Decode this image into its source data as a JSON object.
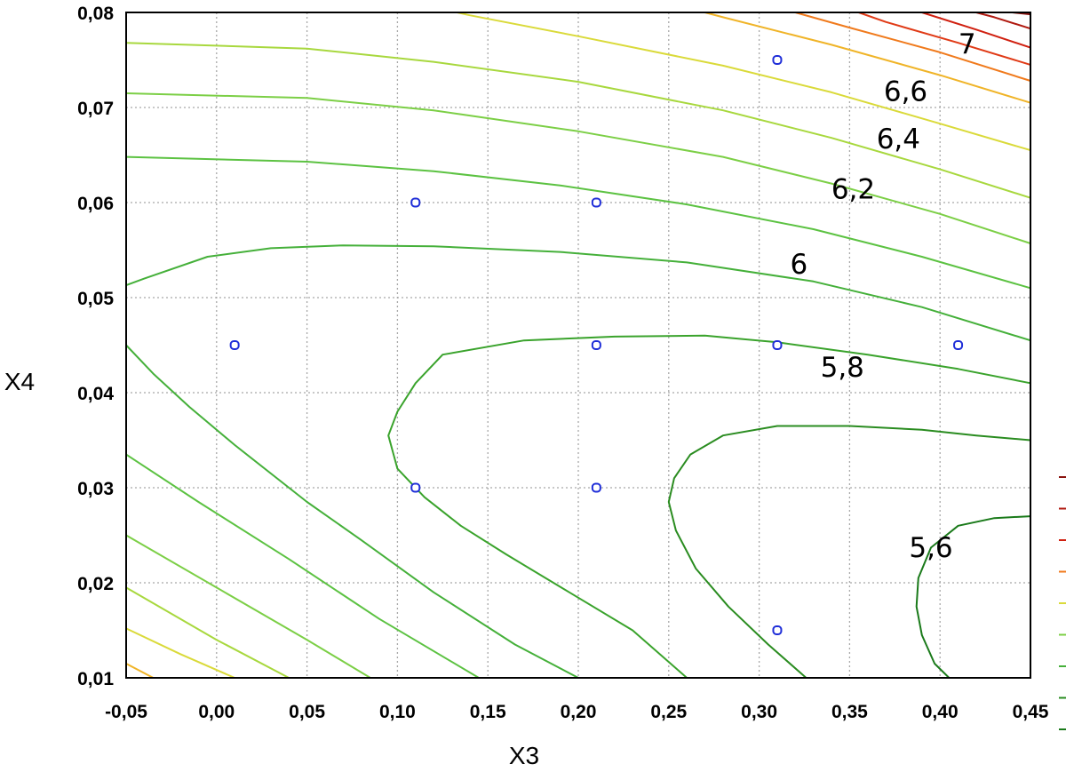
{
  "chart_data": {
    "type": "contour",
    "xlabel": "X3",
    "ylabel": "X4",
    "xlim": [
      -0.05,
      0.45
    ],
    "ylim": [
      0.01,
      0.08
    ],
    "x_ticks": [
      "-0,05",
      "0,00",
      "0,05",
      "0,10",
      "0,15",
      "0,20",
      "0,25",
      "0,30",
      "0,35",
      "0,40",
      "0,45"
    ],
    "y_ticks": [
      "0,01",
      "0,02",
      "0,03",
      "0,04",
      "0,05",
      "0,06",
      "0,07",
      "0,08"
    ],
    "grid": true,
    "legend_position": "right",
    "design_points": [
      {
        "x": 0.01,
        "y": 0.045
      },
      {
        "x": 0.11,
        "y": 0.06
      },
      {
        "x": 0.11,
        "y": 0.03
      },
      {
        "x": 0.21,
        "y": 0.06
      },
      {
        "x": 0.21,
        "y": 0.045
      },
      {
        "x": 0.21,
        "y": 0.03
      },
      {
        "x": 0.31,
        "y": 0.075
      },
      {
        "x": 0.31,
        "y": 0.045
      },
      {
        "x": 0.31,
        "y": 0.015
      },
      {
        "x": 0.41,
        "y": 0.045
      }
    ],
    "contour_labels": [
      {
        "text": "7",
        "x": 0.415,
        "y": 0.0765
      },
      {
        "text": "6,6",
        "x": 0.381,
        "y": 0.0715
      },
      {
        "text": "6,4",
        "x": 0.377,
        "y": 0.0665
      },
      {
        "text": "6,2",
        "x": 0.352,
        "y": 0.0612
      },
      {
        "text": "6",
        "x": 0.322,
        "y": 0.0533
      },
      {
        "text": "5,8",
        "x": 0.346,
        "y": 0.0425
      },
      {
        "text": "5,6",
        "x": 0.395,
        "y": 0.0235
      }
    ],
    "contours": [
      {
        "color": "#1a7a1a",
        "points": [
          [
            0.45,
            0.027
          ],
          [
            0.43,
            0.0268
          ],
          [
            0.41,
            0.026
          ],
          [
            0.395,
            0.0237
          ],
          [
            0.388,
            0.0205
          ],
          [
            0.387,
            0.0175
          ],
          [
            0.39,
            0.0145
          ],
          [
            0.397,
            0.0115
          ],
          [
            0.405,
            0.01
          ]
        ]
      },
      {
        "color": "#2a8c20",
        "points": [
          [
            0.45,
            0.035
          ],
          [
            0.42,
            0.0355
          ],
          [
            0.39,
            0.0361
          ],
          [
            0.35,
            0.0365
          ],
          [
            0.31,
            0.0365
          ],
          [
            0.28,
            0.0355
          ],
          [
            0.262,
            0.0335
          ],
          [
            0.253,
            0.031
          ],
          [
            0.25,
            0.0285
          ],
          [
            0.254,
            0.0255
          ],
          [
            0.265,
            0.0215
          ],
          [
            0.283,
            0.0175
          ],
          [
            0.305,
            0.0135
          ],
          [
            0.326,
            0.01
          ]
        ]
      },
      {
        "color": "#3aa32c",
        "points": [
          [
            0.45,
            0.041
          ],
          [
            0.41,
            0.0425
          ],
          [
            0.36,
            0.044
          ],
          [
            0.31,
            0.0453
          ],
          [
            0.27,
            0.046
          ],
          [
            0.22,
            0.0459
          ],
          [
            0.17,
            0.0455
          ],
          [
            0.125,
            0.044
          ],
          [
            0.11,
            0.041
          ],
          [
            0.1,
            0.038
          ],
          [
            0.095,
            0.0355
          ],
          [
            0.1,
            0.032
          ],
          [
            0.115,
            0.029
          ],
          [
            0.135,
            0.026
          ],
          [
            0.16,
            0.023
          ],
          [
            0.195,
            0.019
          ],
          [
            0.23,
            0.015
          ],
          [
            0.26,
            0.01
          ]
        ]
      },
      {
        "color": "#45b03a",
        "points": [
          [
            0.45,
            0.0455
          ],
          [
            0.39,
            0.049
          ],
          [
            0.33,
            0.0517
          ],
          [
            0.26,
            0.0537
          ],
          [
            0.19,
            0.0548
          ],
          [
            0.12,
            0.0554
          ],
          [
            0.07,
            0.0555
          ],
          [
            0.03,
            0.0552
          ],
          [
            -0.005,
            0.0543
          ],
          [
            -0.04,
            0.052
          ],
          [
            -0.05,
            0.0513
          ]
        ]
      },
      {
        "color": "#45b03a",
        "points": [
          [
            -0.05,
            0.045
          ],
          [
            -0.035,
            0.042
          ],
          [
            -0.015,
            0.0385
          ],
          [
            0.01,
            0.0345
          ],
          [
            0.05,
            0.0285
          ],
          [
            0.08,
            0.0245
          ],
          [
            0.12,
            0.019
          ],
          [
            0.165,
            0.0135
          ],
          [
            0.2,
            0.01
          ]
        ]
      },
      {
        "color": "#5cc242",
        "points": [
          [
            0.45,
            0.051
          ],
          [
            0.39,
            0.0543
          ],
          [
            0.33,
            0.0572
          ],
          [
            0.26,
            0.0598
          ],
          [
            0.19,
            0.0618
          ],
          [
            0.12,
            0.0633
          ],
          [
            0.05,
            0.0643
          ],
          [
            -0.05,
            0.0648
          ]
        ]
      },
      {
        "color": "#5cc242",
        "points": [
          [
            -0.05,
            0.0335
          ],
          [
            -0.01,
            0.0285
          ],
          [
            0.04,
            0.0225
          ],
          [
            0.09,
            0.0162
          ],
          [
            0.145,
            0.01
          ]
        ]
      },
      {
        "color": "#7ccf46",
        "points": [
          [
            0.45,
            0.0557
          ],
          [
            0.4,
            0.0588
          ],
          [
            0.34,
            0.062
          ],
          [
            0.28,
            0.0648
          ],
          [
            0.2,
            0.0675
          ],
          [
            0.12,
            0.0697
          ],
          [
            0.05,
            0.071
          ],
          [
            -0.05,
            0.0715
          ]
        ]
      },
      {
        "color": "#7ccf46",
        "points": [
          [
            -0.05,
            0.025
          ],
          [
            0.0,
            0.0195
          ],
          [
            0.05,
            0.014
          ],
          [
            0.085,
            0.01
          ]
        ]
      },
      {
        "color": "#a8d83e",
        "points": [
          [
            0.45,
            0.0605
          ],
          [
            0.4,
            0.0635
          ],
          [
            0.34,
            0.0668
          ],
          [
            0.28,
            0.0697
          ],
          [
            0.2,
            0.0727
          ],
          [
            0.12,
            0.0748
          ],
          [
            0.05,
            0.0762
          ],
          [
            -0.05,
            0.0768
          ]
        ]
      },
      {
        "color": "#a8d83e",
        "points": [
          [
            -0.05,
            0.0195
          ],
          [
            0.0,
            0.014
          ],
          [
            0.04,
            0.01
          ]
        ]
      },
      {
        "color": "#dada3a",
        "points": [
          [
            0.45,
            0.0655
          ],
          [
            0.4,
            0.0683
          ],
          [
            0.34,
            0.0716
          ],
          [
            0.28,
            0.0744
          ],
          [
            0.2,
            0.0775
          ],
          [
            0.14,
            0.0797
          ],
          [
            0.133,
            0.08
          ]
        ]
      },
      {
        "color": "#dada3a",
        "points": [
          [
            -0.05,
            0.0152
          ],
          [
            -0.02,
            0.0125
          ],
          [
            0.01,
            0.01
          ]
        ]
      },
      {
        "color": "#f0b428",
        "points": [
          [
            0.45,
            0.0705
          ],
          [
            0.4,
            0.0734
          ],
          [
            0.34,
            0.0766
          ],
          [
            0.28,
            0.0795
          ],
          [
            0.27,
            0.08
          ]
        ]
      },
      {
        "color": "#f0b428",
        "points": [
          [
            -0.05,
            0.0115
          ],
          [
            -0.035,
            0.01
          ]
        ]
      },
      {
        "color": "#f07a1c",
        "points": [
          [
            0.45,
            0.0728
          ],
          [
            0.4,
            0.0758
          ],
          [
            0.35,
            0.0784
          ],
          [
            0.32,
            0.08
          ]
        ]
      },
      {
        "color": "#e03a16",
        "points": [
          [
            0.45,
            0.0745
          ],
          [
            0.41,
            0.0768
          ],
          [
            0.37,
            0.079
          ],
          [
            0.355,
            0.08
          ]
        ]
      },
      {
        "color": "#d02010",
        "points": [
          [
            0.45,
            0.0763
          ],
          [
            0.42,
            0.0782
          ],
          [
            0.39,
            0.08
          ]
        ]
      },
      {
        "color": "#b01a10",
        "points": [
          [
            0.45,
            0.0783
          ],
          [
            0.43,
            0.0795
          ],
          [
            0.42,
            0.08
          ]
        ]
      },
      {
        "color": "#8a1410",
        "points": [
          [
            0.45,
            0.0798
          ],
          [
            0.44,
            0.08
          ]
        ]
      }
    ],
    "legend_swatches": [
      "#8a1410",
      "#b01a10",
      "#d02010",
      "#f07a1c",
      "#dada3a",
      "#7ccf46",
      "#45b03a",
      "#2a8c20",
      "#1a7a1a"
    ],
    "point_color": "#1f2ed8"
  }
}
